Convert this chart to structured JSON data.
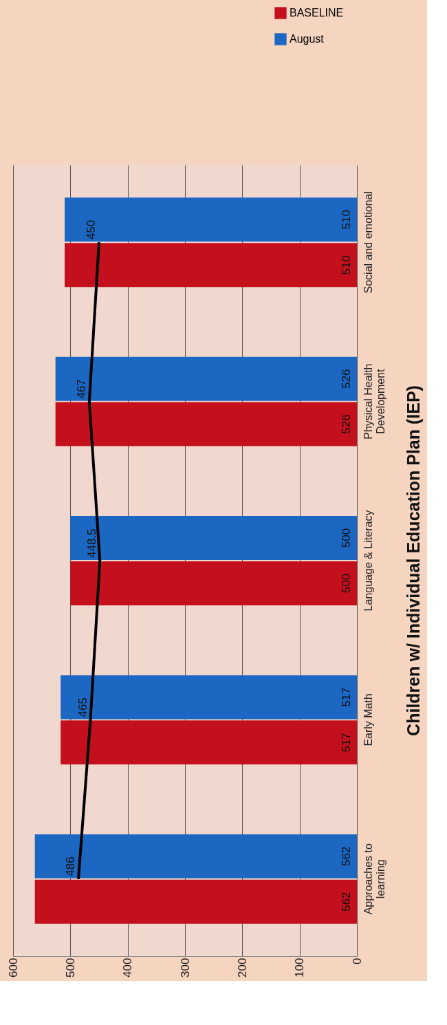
{
  "chart_data": {
    "type": "bar",
    "orientation": "horizontal",
    "title": "Children w/ Individual Education Plan (IEP)",
    "categories": [
      "Social and emotional",
      "Physical Health\nDevelopment",
      "Language & Literacy",
      "Early Math",
      "Approaches to\nlearning"
    ],
    "series": [
      {
        "name": "BASELINE",
        "color": "#c4101c",
        "values": [
          510,
          526,
          500,
          517,
          562
        ]
      },
      {
        "name": "August",
        "color": "#1b67c2",
        "values": [
          510,
          526,
          500,
          517,
          562
        ]
      },
      {
        "type": "line",
        "color": "#000000",
        "values": [
          450,
          467,
          448.5,
          465,
          486
        ]
      }
    ],
    "xlim": [
      600,
      0
    ],
    "xticks": [
      600,
      500,
      400,
      300,
      200,
      100,
      0
    ],
    "grid": "x",
    "legend": "top right",
    "data_labels": true
  }
}
